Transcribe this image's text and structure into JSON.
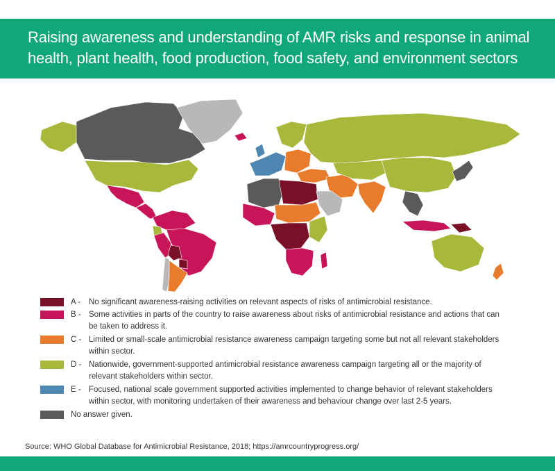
{
  "header": {
    "title": "Raising awareness and understanding of AMR risks and response in animal health, plant health, food production, food safety, and environment sectors"
  },
  "colors": {
    "header_bg": "#10a878",
    "A": "#7a1028",
    "B": "#c8155a",
    "C": "#e97b2c",
    "D": "#a8b83a",
    "E": "#4f87b3",
    "none": "#5a5a5a",
    "not_reported": "#b8b8b8"
  },
  "legend": [
    {
      "letter": "A -",
      "color_key": "A",
      "text": "No significant awareness-raising activities on relevant aspects of risks of antimicrobial resistance."
    },
    {
      "letter": "B -",
      "color_key": "B",
      "text": "Some activities in parts of the country to raise awareness about risks of antimicrobial resistance and actions that can be taken to address it."
    },
    {
      "letter": "C -",
      "color_key": "C",
      "text": "Limited or small-scale antimicrobial resistance awareness campaign targeting some but not all relevant stakeholders within sector."
    },
    {
      "letter": "D -",
      "color_key": "D",
      "text": "Nationwide, government-supported antimicrobial resistance awareness campaign targeting all or the majority of relevant stakeholders within sector."
    },
    {
      "letter": "E -",
      "color_key": "E",
      "text": "Focused, national scale government supported activities implemented to change behavior of relevant stakeholders within sector, with monitoring undertaken of their awareness and behaviour change over last 2-5 years."
    },
    {
      "letter": "",
      "color_key": "none",
      "text": "No answer given."
    }
  ],
  "source": "Source: WHO Global Database for Antimicrobial Resistance, 2018; https://amrcountryprogress.org/",
  "map_regions": [
    {
      "name": "canada",
      "category": "none"
    },
    {
      "name": "alaska",
      "category": "D"
    },
    {
      "name": "usa",
      "category": "D"
    },
    {
      "name": "greenland",
      "category": "not_reported"
    },
    {
      "name": "mexico",
      "category": "B"
    },
    {
      "name": "central-america",
      "category": "B"
    },
    {
      "name": "colombia-venezuela",
      "category": "B"
    },
    {
      "name": "ecuador",
      "category": "D"
    },
    {
      "name": "peru",
      "category": "B"
    },
    {
      "name": "brazil",
      "category": "B"
    },
    {
      "name": "bolivia",
      "category": "A"
    },
    {
      "name": "paraguay",
      "category": "A"
    },
    {
      "name": "argentina",
      "category": "C"
    },
    {
      "name": "chile",
      "category": "not_reported"
    },
    {
      "name": "uk",
      "category": "E"
    },
    {
      "name": "iceland",
      "category": "B"
    },
    {
      "name": "scandinavia",
      "category": "D"
    },
    {
      "name": "western-europe",
      "category": "E"
    },
    {
      "name": "eastern-europe",
      "category": "C"
    },
    {
      "name": "russia",
      "category": "D"
    },
    {
      "name": "turkey-caucasus",
      "category": "C"
    },
    {
      "name": "north-africa-west",
      "category": "none"
    },
    {
      "name": "libya-egypt",
      "category": "A"
    },
    {
      "name": "west-africa",
      "category": "B"
    },
    {
      "name": "sahel",
      "category": "C"
    },
    {
      "name": "central-africa",
      "category": "A"
    },
    {
      "name": "east-africa",
      "category": "D"
    },
    {
      "name": "southern-africa",
      "category": "B"
    },
    {
      "name": "madagascar",
      "category": "B"
    },
    {
      "name": "middle-east",
      "category": "C"
    },
    {
      "name": "arabia",
      "category": "not_reported"
    },
    {
      "name": "central-asia",
      "category": "D"
    },
    {
      "name": "india",
      "category": "C"
    },
    {
      "name": "china-mongolia",
      "category": "D"
    },
    {
      "name": "southeast-asia",
      "category": "none"
    },
    {
      "name": "indonesia",
      "category": "B"
    },
    {
      "name": "japan-korea",
      "category": "none"
    },
    {
      "name": "papua",
      "category": "A"
    },
    {
      "name": "australia",
      "category": "D"
    },
    {
      "name": "new-zealand",
      "category": "C"
    }
  ]
}
